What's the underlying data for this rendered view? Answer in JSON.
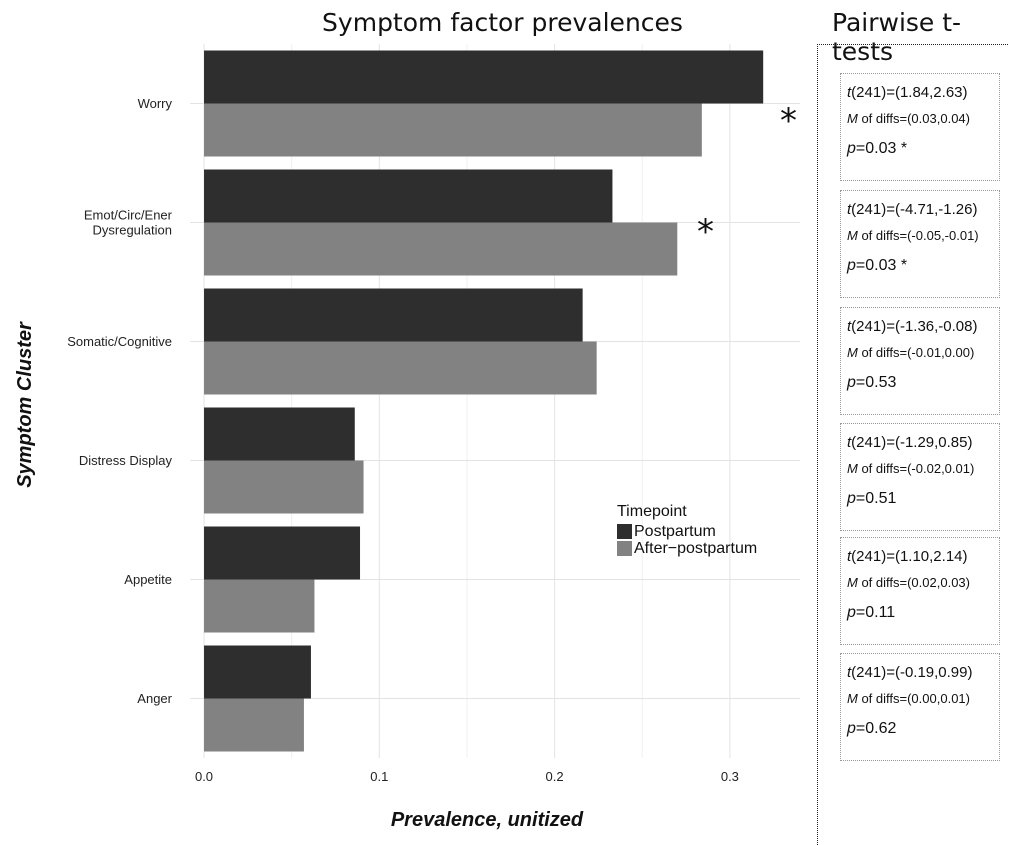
{
  "chart_data": {
    "type": "bar",
    "orientation": "horizontal",
    "title": "Symptom factor prevalences",
    "xlabel": "Prevalence, unitized",
    "ylabel": "Symptom Cluster",
    "categories": [
      "Worry",
      "Emot/Circ/Ener Dysregulation",
      "Somatic/Cognitive",
      "Distress Display",
      "Appetite",
      "Anger"
    ],
    "category_lines": [
      [
        "Worry"
      ],
      [
        "Emot/Circ/Ener",
        "Dysregulation"
      ],
      [
        "Somatic/Cognitive"
      ],
      [
        "Distress Display"
      ],
      [
        "Appetite"
      ],
      [
        "Anger"
      ]
    ],
    "series": [
      {
        "name": "Postpartum",
        "color": "#2e2e2e",
        "values": [
          0.319,
          0.233,
          0.216,
          0.086,
          0.089,
          0.061
        ]
      },
      {
        "name": "After−postpartum",
        "color": "#828282",
        "values": [
          0.284,
          0.27,
          0.224,
          0.091,
          0.063,
          0.057
        ]
      }
    ],
    "xlim": [
      -0.008,
      0.34
    ],
    "xticks": [
      0.0,
      0.1,
      0.2,
      0.3
    ],
    "xtick_labels": [
      "0.0",
      "0.1",
      "0.2",
      "0.3"
    ],
    "grid": true,
    "legend": {
      "title": "Timepoint",
      "placement": "inside-right"
    },
    "significance_markers": [
      "*",
      "*"
    ]
  },
  "ttests": {
    "title": "Pairwise t-tests",
    "items": [
      {
        "t_sym": "t",
        "t_text": "(241)=(1.84,2.63)",
        "m_sym": "M",
        "m_text": " of diffs=(0.03,0.04)",
        "p_sym": "p",
        "p_text": "=0.03 *"
      },
      {
        "t_sym": "t",
        "t_text": "(241)=(-4.71,-1.26)",
        "m_sym": "M",
        "m_text": " of diffs=(-0.05,-0.01)",
        "p_sym": "p",
        "p_text": "=0.03 *"
      },
      {
        "t_sym": "t",
        "t_text": "(241)=(-1.36,-0.08)",
        "m_sym": "M",
        "m_text": " of diffs=(-0.01,0.00)",
        "p_sym": "p",
        "p_text": "=0.53"
      },
      {
        "t_sym": "t",
        "t_text": "(241)=(-1.29,0.85)",
        "m_sym": "M",
        "m_text": " of diffs=(-0.02,0.01)",
        "p_sym": "p",
        "p_text": "=0.51"
      },
      {
        "t_sym": "t",
        "t_text": "(241)=(1.10,2.14)",
        "m_sym": "M",
        "m_text": " of diffs=(0.02,0.03)",
        "p_sym": "p",
        "p_text": "=0.11"
      },
      {
        "t_sym": "t",
        "t_text": "(241)=(-0.19,0.99)",
        "m_sym": "M",
        "m_text": " of diffs=(0.00,0.01)",
        "p_sym": "p",
        "p_text": "=0.62"
      }
    ]
  }
}
